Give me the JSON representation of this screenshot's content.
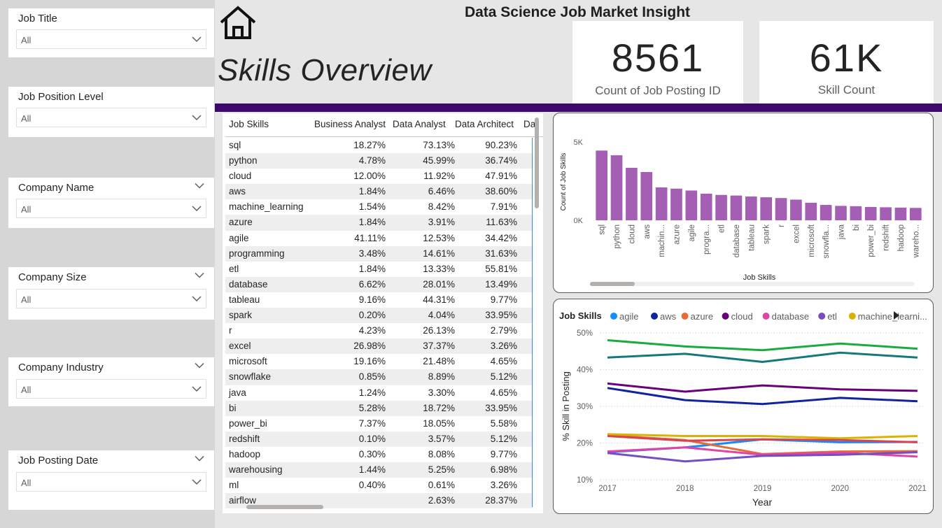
{
  "header": {
    "dashboard_title": "Data Science Job Market Insight",
    "page_title": "Skills Overview"
  },
  "kpis": [
    {
      "value": "8561",
      "label": "Count of Job Posting ID"
    },
    {
      "value": "61K",
      "label": "Skill Count"
    }
  ],
  "filters": [
    {
      "title": "Job Title",
      "value": "All"
    },
    {
      "title": "Job Position Level",
      "value": "All"
    },
    {
      "title": "Company Name",
      "value": "All"
    },
    {
      "title": "Company Size",
      "value": "All"
    },
    {
      "title": "Company Industry",
      "value": "All"
    },
    {
      "title": "Job Posting Date",
      "value": "All"
    }
  ],
  "table": {
    "columns": [
      "Job Skills",
      "Business Analyst",
      "Data Analyst",
      "Data Architect",
      "Da"
    ],
    "rows": [
      [
        "sql",
        "18.27%",
        "73.13%",
        "90.23%"
      ],
      [
        "python",
        "4.78%",
        "45.99%",
        "36.74%"
      ],
      [
        "cloud",
        "12.00%",
        "11.92%",
        "47.91%"
      ],
      [
        "aws",
        "1.84%",
        "6.46%",
        "38.60%"
      ],
      [
        "machine_learning",
        "1.54%",
        "8.42%",
        "7.91%"
      ],
      [
        "azure",
        "1.84%",
        "3.91%",
        "11.63%"
      ],
      [
        "agile",
        "41.11%",
        "12.53%",
        "34.42%"
      ],
      [
        "programming",
        "3.48%",
        "14.61%",
        "31.63%"
      ],
      [
        "etl",
        "1.84%",
        "13.33%",
        "55.81%"
      ],
      [
        "database",
        "6.62%",
        "28.01%",
        "13.49%"
      ],
      [
        "tableau",
        "9.16%",
        "44.31%",
        "9.77%"
      ],
      [
        "spark",
        "0.20%",
        "4.04%",
        "33.95%"
      ],
      [
        "r",
        "4.23%",
        "26.13%",
        "2.79%"
      ],
      [
        "excel",
        "26.98%",
        "37.37%",
        "3.26%"
      ],
      [
        "microsoft",
        "19.16%",
        "21.48%",
        "4.65%"
      ],
      [
        "snowflake",
        "0.85%",
        "8.89%",
        "5.12%"
      ],
      [
        "java",
        "1.24%",
        "3.30%",
        "4.65%"
      ],
      [
        "bi",
        "5.28%",
        "18.72%",
        "33.95%"
      ],
      [
        "power_bi",
        "7.37%",
        "18.05%",
        "5.58%"
      ],
      [
        "redshift",
        "0.10%",
        "3.57%",
        "5.12%"
      ],
      [
        "hadoop",
        "0.30%",
        "8.08%",
        "9.77%"
      ],
      [
        "warehousing",
        "1.44%",
        "5.25%",
        "6.98%"
      ],
      [
        "ml",
        "0.40%",
        "0.61%",
        "3.26%"
      ],
      [
        "airflow",
        "",
        "2.63%",
        "28.37%"
      ]
    ]
  },
  "chart_data": [
    {
      "type": "bar",
      "color": "#a45fb5",
      "xlabel": "Job Skills",
      "ylabel": "Count of Job Skills",
      "yticks": [
        "0K",
        "5K"
      ],
      "ylim": [
        0,
        5000
      ],
      "categories": [
        "sql",
        "python",
        "cloud",
        "aws",
        "machin...",
        "azure",
        "agile",
        "progra...",
        "etl",
        "database",
        "tableau",
        "spark",
        "r",
        "excel",
        "microsoft",
        "snowfla...",
        "java",
        "bi",
        "power_bi",
        "redshift",
        "hadoop",
        "wareho..."
      ],
      "values": [
        4450,
        4150,
        3350,
        3080,
        2100,
        2020,
        1900,
        1700,
        1620,
        1580,
        1520,
        1470,
        1420,
        1320,
        1120,
        980,
        920,
        900,
        850,
        830,
        810,
        790
      ]
    },
    {
      "type": "line",
      "legend_title": "Job Skills",
      "legend_placement": "top",
      "xlabel": "Year",
      "ylabel": "% Skill in Posting",
      "x": [
        2017,
        2018,
        2019,
        2020,
        2021
      ],
      "yticks": [
        "10%",
        "20%",
        "30%",
        "40%",
        "50%"
      ],
      "ylim": [
        10,
        50
      ],
      "series": [
        {
          "name": "agile",
          "color": "#118dff",
          "legend": true,
          "values": [
            17.5,
            18.8,
            21.0,
            20.2,
            20.3
          ]
        },
        {
          "name": "aws",
          "color": "#12239e",
          "legend": true,
          "values": [
            35.0,
            31.7,
            30.6,
            32.3,
            31.4
          ]
        },
        {
          "name": "azure",
          "color": "#e66c37",
          "legend": true,
          "values": [
            22.1,
            20.8,
            17.0,
            17.7,
            17.8
          ]
        },
        {
          "name": "cloud",
          "color": "#6b007b",
          "legend": true,
          "values": [
            36.2,
            34.0,
            35.7,
            34.6,
            34.2
          ]
        },
        {
          "name": "database",
          "color": "#e044a7",
          "legend": true,
          "values": [
            17.7,
            18.8,
            16.8,
            17.4,
            16.3
          ]
        },
        {
          "name": "etl",
          "color": "#744ec2",
          "legend": true,
          "values": [
            17.3,
            15.0,
            16.5,
            16.8,
            17.5
          ]
        },
        {
          "name": "machine_learni...",
          "color": "#d9b300",
          "legend": true,
          "values": [
            22.4,
            21.9,
            21.9,
            21.3,
            21.9
          ]
        },
        {
          "name": "",
          "color": "#1aab40",
          "legend": false,
          "values": [
            48.0,
            46.3,
            45.3,
            47.1,
            45.7
          ]
        },
        {
          "name": "",
          "color": "#15797b",
          "legend": false,
          "values": [
            43.3,
            44.3,
            42.1,
            44.6,
            43.3
          ]
        },
        {
          "name": "",
          "color": "#d64550",
          "legend": false,
          "values": [
            21.9,
            20.6,
            21.0,
            20.8,
            20.2
          ]
        }
      ]
    }
  ]
}
